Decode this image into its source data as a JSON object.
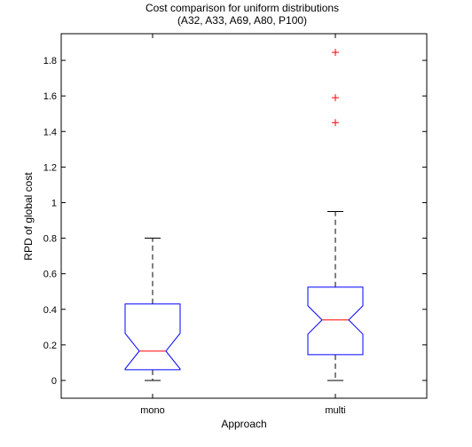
{
  "chart_data": {
    "type": "box",
    "title": "Cost comparison for uniform distributions",
    "subtitle": "(A32, A33, A69, A80, P100)",
    "xlabel": "Approach",
    "ylabel": "RPD of global cost",
    "categories": [
      "mono",
      "multi"
    ],
    "ylim": [
      -0.1,
      1.95
    ],
    "yticks": [
      0,
      0.2,
      0.4,
      0.6,
      0.8,
      1,
      1.2,
      1.4,
      1.6,
      1.8
    ],
    "ytick_labels": [
      "0",
      "0.2",
      "0.4",
      "0.6",
      "0.8",
      "1",
      "1.2",
      "1.4",
      "1.6",
      "1.8"
    ],
    "notched": true,
    "boxes": [
      {
        "category": "mono",
        "whisker_low": 0,
        "q1": 0.06,
        "median": 0.165,
        "q3": 0.43,
        "whisker_high": 0.8,
        "notch_low": 0.065,
        "notch_high": 0.265,
        "outliers": []
      },
      {
        "category": "multi",
        "whisker_low": 0,
        "q1": 0.145,
        "median": 0.34,
        "q3": 0.525,
        "whisker_high": 0.95,
        "notch_low": 0.26,
        "notch_high": 0.42,
        "outliers": [
          1.45,
          1.59,
          1.845
        ]
      }
    ],
    "colors": {
      "box": "#0000ff",
      "median": "#ff0000",
      "whisker": "#000000",
      "outlier": "#ff0000",
      "axes": "#000000"
    },
    "grid": false,
    "legend": "none"
  }
}
